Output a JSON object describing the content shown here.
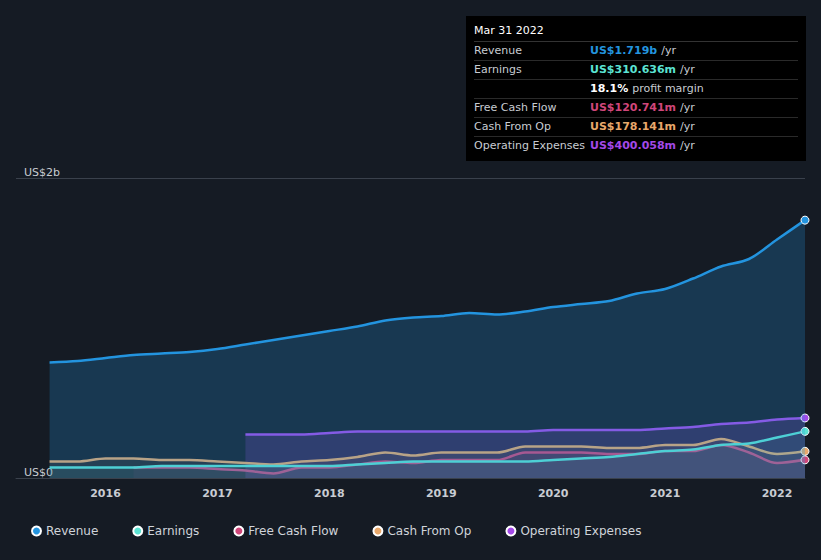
{
  "chart_data": {
    "type": "line",
    "x": [
      2015.5,
      2015.75,
      2016.0,
      2016.25,
      2016.5,
      2016.75,
      2017.0,
      2017.25,
      2017.5,
      2017.75,
      2018.0,
      2018.25,
      2018.5,
      2018.75,
      2019.0,
      2019.25,
      2019.5,
      2019.75,
      2020.0,
      2020.25,
      2020.5,
      2020.75,
      2021.0,
      2021.25,
      2021.5,
      2021.75,
      2022.0,
      2022.25
    ],
    "xlim": [
      2015.2,
      2022.25
    ],
    "xticks": [
      2016,
      2017,
      2018,
      2019,
      2020,
      2021,
      2022
    ],
    "ylim": [
      0,
      2
    ],
    "yticks": [
      {
        "value": 0,
        "label": "US$0"
      },
      {
        "value": 2,
        "label": "US$2b"
      }
    ],
    "grid": true,
    "legend": "bottom-left",
    "series": [
      {
        "name": "Revenue",
        "color": "#2394df",
        "marker": "circle",
        "values": [
          0.77,
          0.78,
          0.8,
          0.82,
          0.83,
          0.84,
          0.86,
          0.89,
          0.92,
          0.95,
          0.98,
          1.01,
          1.05,
          1.07,
          1.08,
          1.1,
          1.09,
          1.11,
          1.14,
          1.16,
          1.18,
          1.23,
          1.26,
          1.33,
          1.41,
          1.46,
          1.59,
          1.719
        ]
      },
      {
        "name": "Earnings",
        "color": "#5be3d3",
        "marker": "circle",
        "values": [
          0.07,
          0.07,
          0.07,
          0.07,
          0.08,
          0.08,
          0.08,
          0.08,
          0.08,
          0.08,
          0.08,
          0.09,
          0.1,
          0.11,
          0.11,
          0.11,
          0.11,
          0.11,
          0.12,
          0.13,
          0.14,
          0.16,
          0.18,
          0.19,
          0.22,
          0.23,
          0.27,
          0.311
        ]
      },
      {
        "name": "Free Cash Flow",
        "color": "#d0467a",
        "marker": "circle",
        "values": [
          null,
          null,
          null,
          0.07,
          0.07,
          0.07,
          0.06,
          0.05,
          0.03,
          0.07,
          0.07,
          0.09,
          0.11,
          0.1,
          0.12,
          0.12,
          0.12,
          0.17,
          0.17,
          0.17,
          0.16,
          0.16,
          0.18,
          0.18,
          0.22,
          0.17,
          0.1,
          0.121
        ]
      },
      {
        "name": "Cash From Op",
        "color": "#e8a86b",
        "marker": "circle",
        "values": [
          0.11,
          0.11,
          0.13,
          0.13,
          0.12,
          0.12,
          0.11,
          0.1,
          0.09,
          0.11,
          0.12,
          0.14,
          0.17,
          0.15,
          0.17,
          0.17,
          0.17,
          0.21,
          0.21,
          0.21,
          0.2,
          0.2,
          0.22,
          0.22,
          0.26,
          0.21,
          0.16,
          0.178
        ]
      },
      {
        "name": "Operating Expenses",
        "color": "#a349e8",
        "marker": "circle",
        "values": [
          null,
          null,
          null,
          null,
          null,
          null,
          null,
          0.29,
          0.29,
          0.29,
          0.3,
          0.31,
          0.31,
          0.31,
          0.31,
          0.31,
          0.31,
          0.31,
          0.32,
          0.32,
          0.32,
          0.32,
          0.33,
          0.34,
          0.36,
          0.37,
          0.39,
          0.4
        ]
      }
    ],
    "annotations": {
      "header": "Mar 31 2022",
      "rows": [
        {
          "label": "Revenue",
          "value": "US$1.719b",
          "unit": "/yr",
          "color": "#2394df"
        },
        {
          "label": "Earnings",
          "value": "US$310.636m",
          "unit": "/yr",
          "color": "#5be3d3"
        },
        {
          "value": "18.1%",
          "unit": "profit margin",
          "color": "#ffffff"
        },
        {
          "label": "Free Cash Flow",
          "value": "US$120.741m",
          "unit": "/yr",
          "color": "#d0467a"
        },
        {
          "label": "Cash From Op",
          "value": "US$178.141m",
          "unit": "/yr",
          "color": "#e8a86b"
        },
        {
          "label": "Operating Expenses",
          "value": "US$400.058m",
          "unit": "/yr",
          "color": "#a349e8"
        }
      ]
    }
  }
}
